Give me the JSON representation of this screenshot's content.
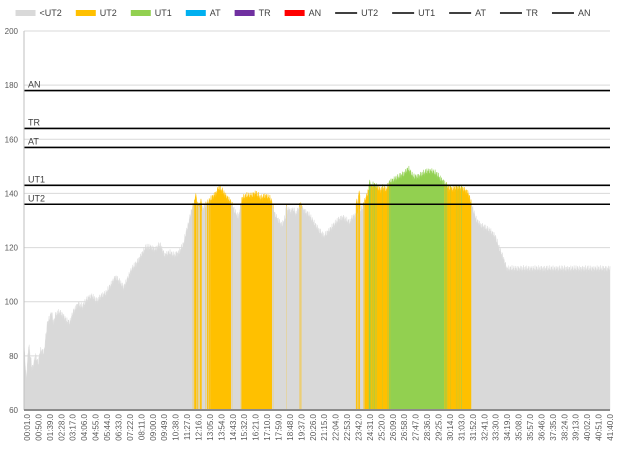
{
  "chart_data": {
    "type": "area",
    "title": "",
    "xlabel": "",
    "ylabel": "",
    "ylim": [
      60,
      200
    ],
    "yticks": [
      60,
      80,
      100,
      120,
      140,
      160,
      180,
      200
    ],
    "grid": "horizontal",
    "legend_position": "top",
    "x_tick_labels": [
      "00:01.0",
      "00:50.0",
      "01:39.0",
      "02:28.0",
      "03:17.0",
      "04:06.0",
      "04:55.0",
      "05:44.0",
      "06:33.0",
      "07:22.0",
      "08:11.0",
      "09:00.0",
      "09:49.0",
      "10:38.0",
      "11:27.0",
      "12:16.0",
      "13:05.0",
      "13:54.0",
      "14:43.0",
      "15:32.0",
      "16:21.0",
      "17:10.0",
      "17:59.0",
      "18:48.0",
      "19:37.0",
      "20:26.0",
      "21:15.0",
      "22:04.0",
      "22:53.0",
      "23:42.0",
      "24:31.0",
      "25:20.0",
      "26:09.0",
      "26:58.0",
      "27:47.0",
      "28:36.0",
      "29:25.0",
      "30:14.0",
      "31:03.0",
      "31:52.0",
      "32:41.0",
      "33:30.0",
      "34:19.0",
      "35:08.0",
      "35:57.0",
      "36:46.0",
      "37:35.0",
      "38:24.0",
      "39:13.0",
      "40:02.0",
      "40:51.0",
      "41:40.0"
    ],
    "legend": [
      {
        "label": "<UT2",
        "marker": "swatch",
        "color": "#d9d9d9"
      },
      {
        "label": "UT2",
        "marker": "swatch",
        "color": "#ffc000"
      },
      {
        "label": "UT1",
        "marker": "swatch",
        "color": "#92d050"
      },
      {
        "label": "AT",
        "marker": "swatch",
        "color": "#00b0f0"
      },
      {
        "label": "TR",
        "marker": "swatch",
        "color": "#7030a0"
      },
      {
        "label": "AN",
        "marker": "swatch",
        "color": "#ff0000"
      },
      {
        "label": "UT2",
        "marker": "line",
        "color": "#000000"
      },
      {
        "label": "UT1",
        "marker": "line",
        "color": "#000000"
      },
      {
        "label": "AT",
        "marker": "line",
        "color": "#000000"
      },
      {
        "label": "TR",
        "marker": "line",
        "color": "#000000"
      },
      {
        "label": "AN",
        "marker": "line",
        "color": "#000000"
      }
    ],
    "thresholds": [
      {
        "label": "UT2",
        "value": 136
      },
      {
        "label": "UT1",
        "value": 143
      },
      {
        "label": "AT",
        "value": 157
      },
      {
        "label": "TR",
        "value": 164
      },
      {
        "label": "AN",
        "value": 178
      }
    ],
    "zone_colors": {
      "below": "#d9d9d9",
      "UT2": "#ffc000",
      "UT1": "#92d050",
      "AT": "#00b0f0",
      "TR": "#7030a0",
      "AN": "#ff0000"
    },
    "x_max": 2500,
    "hr_keyframes": [
      [
        0,
        84
      ],
      [
        10,
        71
      ],
      [
        20,
        84
      ],
      [
        35,
        75
      ],
      [
        50,
        80
      ],
      [
        60,
        77
      ],
      [
        70,
        82
      ],
      [
        85,
        81
      ],
      [
        100,
        92
      ],
      [
        110,
        94
      ],
      [
        118,
        96
      ],
      [
        125,
        92
      ],
      [
        135,
        95
      ],
      [
        150,
        96
      ],
      [
        165,
        95
      ],
      [
        180,
        93
      ],
      [
        195,
        92
      ],
      [
        210,
        96
      ],
      [
        230,
        99
      ],
      [
        250,
        98
      ],
      [
        270,
        101
      ],
      [
        290,
        102
      ],
      [
        310,
        100
      ],
      [
        330,
        102
      ],
      [
        350,
        103
      ],
      [
        370,
        106
      ],
      [
        390,
        109
      ],
      [
        410,
        107
      ],
      [
        425,
        105
      ],
      [
        440,
        108
      ],
      [
        460,
        112
      ],
      [
        480,
        114
      ],
      [
        500,
        117
      ],
      [
        520,
        120
      ],
      [
        540,
        120
      ],
      [
        560,
        119
      ],
      [
        580,
        121
      ],
      [
        600,
        117
      ],
      [
        620,
        118
      ],
      [
        640,
        117
      ],
      [
        660,
        118
      ],
      [
        680,
        121
      ],
      [
        690,
        125
      ],
      [
        700,
        128
      ],
      [
        710,
        132
      ],
      [
        720,
        135
      ],
      [
        730,
        137
      ],
      [
        740,
        136
      ],
      [
        760,
        134
      ],
      [
        780,
        136
      ],
      [
        800,
        138
      ],
      [
        820,
        140
      ],
      [
        830,
        142
      ],
      [
        845,
        141
      ],
      [
        860,
        139
      ],
      [
        880,
        137
      ],
      [
        900,
        133
      ],
      [
        915,
        131
      ],
      [
        930,
        138
      ],
      [
        950,
        139
      ],
      [
        970,
        139
      ],
      [
        990,
        140
      ],
      [
        1010,
        138
      ],
      [
        1030,
        139
      ],
      [
        1050,
        138
      ],
      [
        1060,
        136
      ],
      [
        1070,
        132
      ],
      [
        1085,
        130
      ],
      [
        1100,
        128
      ],
      [
        1115,
        131
      ],
      [
        1130,
        133
      ],
      [
        1150,
        134
      ],
      [
        1160,
        132
      ],
      [
        1170,
        134
      ],
      [
        1180,
        136
      ],
      [
        1190,
        134
      ],
      [
        1200,
        133
      ],
      [
        1215,
        132
      ],
      [
        1230,
        130
      ],
      [
        1245,
        128
      ],
      [
        1260,
        126
      ],
      [
        1280,
        124
      ],
      [
        1300,
        126
      ],
      [
        1320,
        128
      ],
      [
        1340,
        130
      ],
      [
        1360,
        131
      ],
      [
        1375,
        130
      ],
      [
        1390,
        129
      ],
      [
        1400,
        131
      ],
      [
        1420,
        132
      ],
      [
        1440,
        134
      ],
      [
        1450,
        136
      ],
      [
        1470,
        141
      ],
      [
        1490,
        143
      ],
      [
        1510,
        142
      ],
      [
        1520,
        141
      ],
      [
        1530,
        142
      ],
      [
        1545,
        141
      ],
      [
        1560,
        144
      ],
      [
        1580,
        145
      ],
      [
        1600,
        146
      ],
      [
        1620,
        147
      ],
      [
        1640,
        149
      ],
      [
        1660,
        146
      ],
      [
        1680,
        146
      ],
      [
        1700,
        147
      ],
      [
        1720,
        148
      ],
      [
        1740,
        148
      ],
      [
        1760,
        147
      ],
      [
        1780,
        145
      ],
      [
        1800,
        143
      ],
      [
        1820,
        141
      ],
      [
        1840,
        142
      ],
      [
        1860,
        142
      ],
      [
        1880,
        141
      ],
      [
        1895,
        140
      ],
      [
        1905,
        137
      ],
      [
        1915,
        134
      ],
      [
        1930,
        130
      ],
      [
        1950,
        128
      ],
      [
        1970,
        127
      ],
      [
        1990,
        126
      ],
      [
        2010,
        124
      ],
      [
        2030,
        119
      ],
      [
        2045,
        116
      ],
      [
        2060,
        112
      ]
    ],
    "spikes": [
      [
        733,
        140
      ],
      [
        745,
        136
      ],
      [
        755,
        138
      ],
      [
        1000,
        136
      ],
      [
        1012,
        135
      ],
      [
        1120,
        136
      ],
      [
        1125,
        128
      ],
      [
        1130,
        135
      ],
      [
        1420,
        138
      ],
      [
        1430,
        141
      ],
      [
        1475,
        145
      ],
      [
        1478,
        140
      ],
      [
        1762,
        143
      ],
      [
        1820,
        143
      ],
      [
        1830,
        141
      ],
      [
        1867,
        143
      ],
      [
        1880,
        142
      ]
    ]
  }
}
